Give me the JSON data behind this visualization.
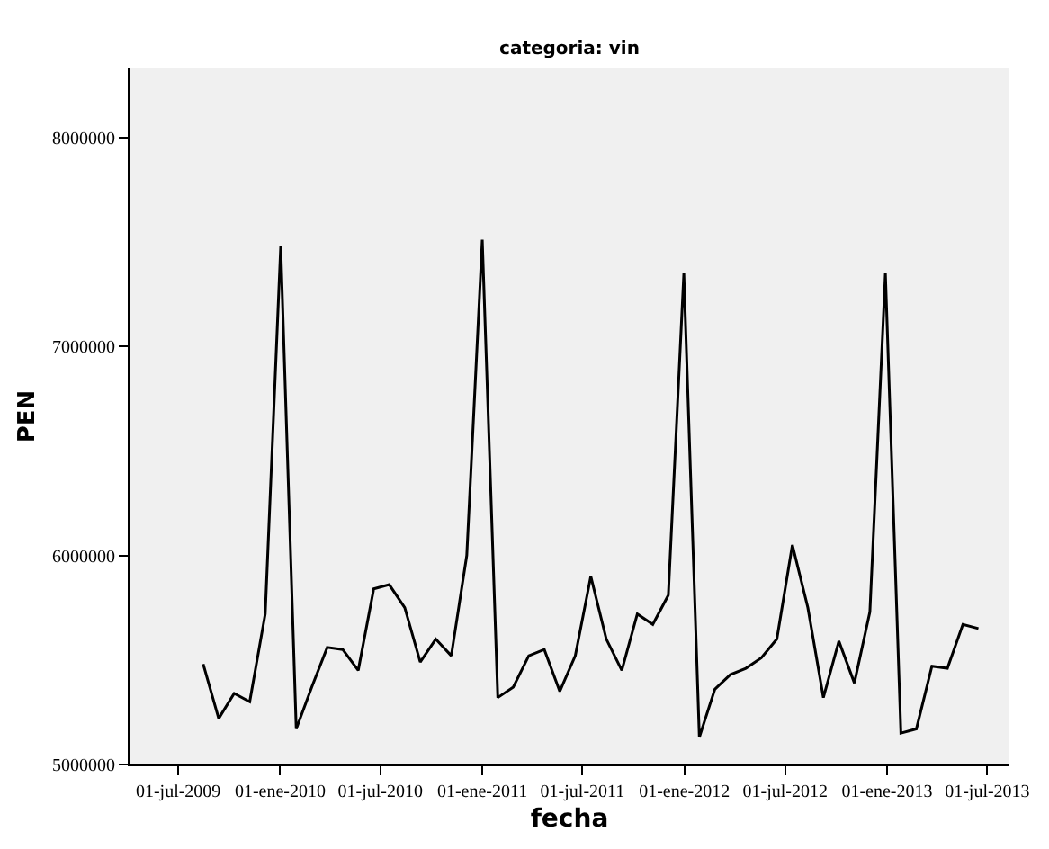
{
  "chart_data": {
    "type": "line",
    "title": "categoria: vin",
    "xlabel": "fecha",
    "ylabel": "PEN",
    "x": [
      "2009-08-15",
      "2009-09-12",
      "2009-10-10",
      "2009-11-07",
      "2009-12-05",
      "2010-01-02",
      "2010-01-30",
      "2010-02-27",
      "2010-03-27",
      "2010-04-24",
      "2010-05-22",
      "2010-06-19",
      "2010-07-17",
      "2010-08-14",
      "2010-09-11",
      "2010-10-09",
      "2010-11-06",
      "2010-12-04",
      "2011-01-01",
      "2011-01-29",
      "2011-02-26",
      "2011-03-26",
      "2011-04-23",
      "2011-05-21",
      "2011-06-18",
      "2011-07-16",
      "2011-08-13",
      "2011-09-10",
      "2011-10-08",
      "2011-11-05",
      "2011-12-03",
      "2011-12-31",
      "2012-01-28",
      "2012-02-25",
      "2012-03-24",
      "2012-04-21",
      "2012-05-19",
      "2012-06-16",
      "2012-07-14",
      "2012-08-11",
      "2012-09-08",
      "2012-10-06",
      "2012-11-03",
      "2012-12-01",
      "2012-12-29",
      "2013-01-26",
      "2013-02-23",
      "2013-03-23",
      "2013-04-20",
      "2013-05-18",
      "2013-06-15"
    ],
    "series": [
      {
        "color": "#000000",
        "values": [
          5480000,
          5220000,
          5340000,
          5300000,
          5720000,
          7480000,
          5170000,
          5370000,
          5560000,
          5550000,
          5450000,
          5840000,
          5860000,
          5750000,
          5490000,
          5600000,
          5520000,
          6000000,
          7510000,
          5320000,
          5370000,
          5520000,
          5550000,
          5350000,
          5520000,
          5900000,
          5600000,
          5450000,
          5720000,
          5670000,
          5810000,
          7350000,
          5130000,
          5360000,
          5430000,
          5460000,
          5510000,
          5600000,
          6050000,
          5750000,
          5320000,
          5590000,
          5390000,
          5730000,
          7350000,
          5150000,
          5170000,
          5470000,
          5460000,
          5670000,
          5650000
        ]
      }
    ],
    "xlim": [
      "2009-04-04",
      "2013-08-10"
    ],
    "xticks": [
      {
        "value": "2009-07-01",
        "label": "01-jul-2009"
      },
      {
        "value": "2010-01-01",
        "label": "01-ene-2010"
      },
      {
        "value": "2010-07-01",
        "label": "01-jul-2010"
      },
      {
        "value": "2011-01-01",
        "label": "01-ene-2011"
      },
      {
        "value": "2011-07-01",
        "label": "01-jul-2011"
      },
      {
        "value": "2012-01-01",
        "label": "01-ene-2012"
      },
      {
        "value": "2012-07-01",
        "label": "01-jul-2012"
      },
      {
        "value": "2013-01-01",
        "label": "01-ene-2013"
      },
      {
        "value": "2013-07-01",
        "label": "01-jul-2013"
      }
    ],
    "ylim": [
      5000000,
      8330000
    ],
    "yticks": [
      5000000,
      6000000,
      7000000,
      8000000
    ],
    "line_style": "solid"
  }
}
